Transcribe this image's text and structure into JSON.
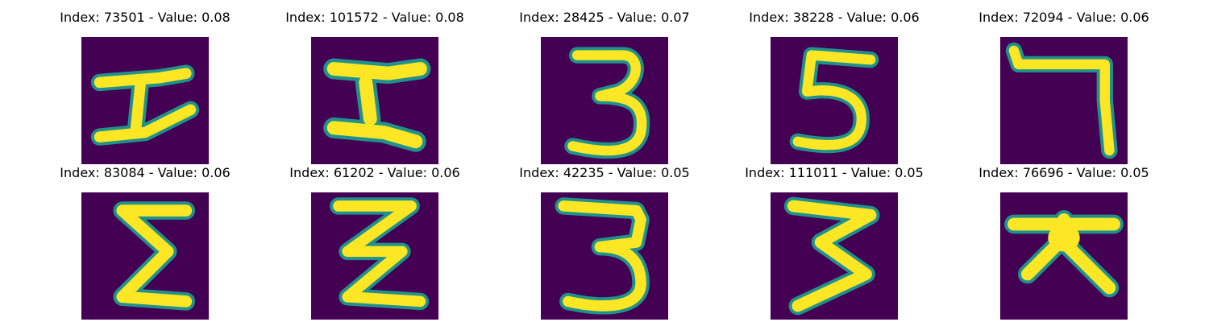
{
  "figure": {
    "background_color": "#440154",
    "stroke_color": "#fde725",
    "edge_color": "#21918c",
    "panels": [
      {
        "title": "Index: 73501 - Value: 0.08",
        "glyph": "H-like character"
      },
      {
        "title": "Index: 101572 - Value: 0.08",
        "glyph": "H-like character"
      },
      {
        "title": "Index: 28425 - Value: 0.07",
        "glyph": "3"
      },
      {
        "title": "Index: 38228 - Value: 0.06",
        "glyph": "5"
      },
      {
        "title": "Index: 72094 - Value: 0.06",
        "glyph": "7"
      },
      {
        "title": "Index: 83084 - Value: 0.06",
        "glyph": "Sigma-like character"
      },
      {
        "title": "Index: 61202 - Value: 0.06",
        "glyph": "Z-like character"
      },
      {
        "title": "Index: 42235 - Value: 0.05",
        "glyph": "3"
      },
      {
        "title": "Index: 111011 - Value: 0.05",
        "glyph": "3"
      },
      {
        "title": "Index: 76696 - Value: 0.05",
        "glyph": "X-like character"
      }
    ]
  }
}
